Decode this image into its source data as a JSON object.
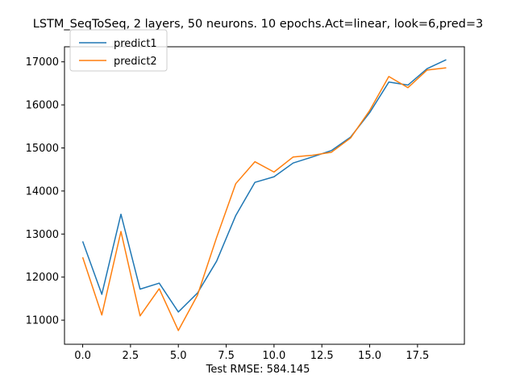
{
  "chart_data": {
    "type": "line",
    "title": "LSTM_SeqToSeq, 2 layers, 50 neurons. 10 epochs.Act=linear, look=6,pred=3",
    "xlabel": "Test RMSE: 584.145",
    "ylabel": "",
    "x": [
      0,
      1,
      2,
      3,
      4,
      5,
      6,
      7,
      8,
      9,
      10,
      11,
      12,
      13,
      14,
      15,
      16,
      17,
      18,
      19
    ],
    "xlim": [
      -0.95,
      19.95
    ],
    "ylim": [
      10440,
      17350
    ],
    "xticks": [
      0.0,
      2.5,
      5.0,
      7.5,
      10.0,
      12.5,
      15.0,
      17.5
    ],
    "xtick_labels": [
      "0.0",
      "2.5",
      "5.0",
      "7.5",
      "10.0",
      "12.5",
      "15.0",
      "17.5"
    ],
    "yticks": [
      11000,
      12000,
      13000,
      14000,
      15000,
      16000,
      17000
    ],
    "ytick_labels": [
      "11000",
      "12000",
      "13000",
      "14000",
      "15000",
      "16000",
      "17000"
    ],
    "grid": false,
    "legend_position": "upper-left",
    "series": [
      {
        "name": "predict1",
        "color": "#1f77b4",
        "values": [
          12830,
          11600,
          13460,
          11720,
          11860,
          11190,
          11630,
          12370,
          13430,
          14200,
          14330,
          14650,
          14790,
          14940,
          15250,
          15820,
          16530,
          16460,
          16840,
          17050
        ]
      },
      {
        "name": "predict2",
        "color": "#ff7f0e",
        "values": [
          12460,
          11120,
          13060,
          11100,
          11730,
          10760,
          11580,
          12920,
          14170,
          14680,
          14440,
          14790,
          14830,
          14900,
          15230,
          15870,
          16660,
          16400,
          16810,
          16860
        ]
      }
    ]
  }
}
